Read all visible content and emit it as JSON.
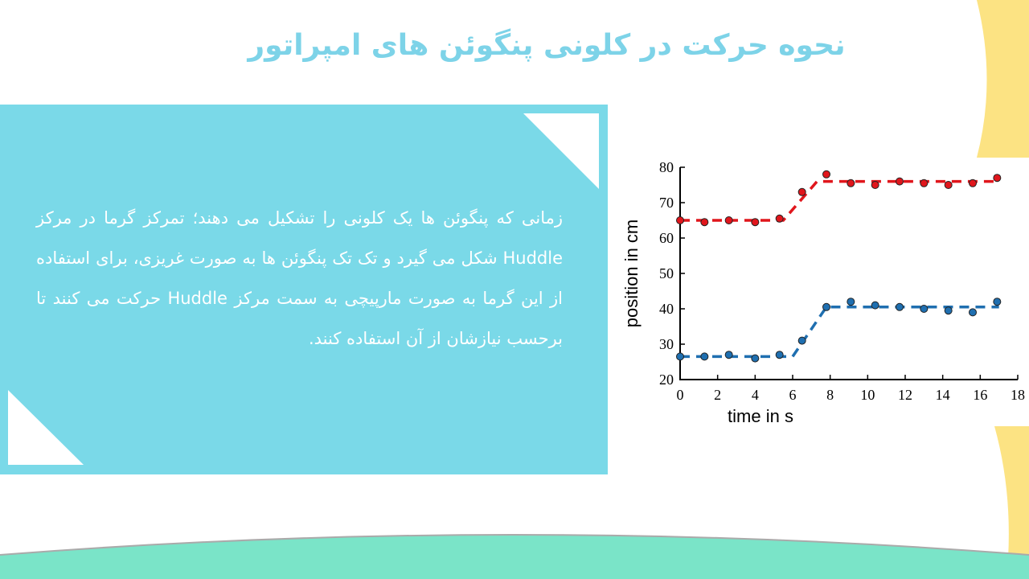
{
  "title": "نحوه حرکت در کلونی پنگوئن های امپراتور",
  "body": "زمانی که پنگوئن ها یک کلونی را تشکیل می دهند؛ تمرکز گرما در مرکز Huddle شکل می گیرد و تک تک پنگوئن ها به صورت غریزی، برای استفاده از این گرما به صورت مارپیچی به سمت مرکز Huddle حرکت می کنند تا برحسب نیازشان از آن استفاده کنند.",
  "chart_data": {
    "type": "scatter",
    "x_label": "time in s",
    "y_label": "position in cm",
    "xlim": [
      0,
      18
    ],
    "xticks": [
      0,
      2,
      4,
      6,
      8,
      10,
      12,
      14,
      16,
      18
    ],
    "ylim": [
      20,
      80
    ],
    "yticks": [
      20,
      30,
      40,
      50,
      60,
      70,
      80
    ],
    "series": [
      {
        "color": "#e0161c",
        "style": "dashed",
        "x": [
          0,
          5.5,
          7.3,
          17
        ],
        "values": [
          65,
          65,
          76,
          76
        ]
      },
      {
        "color": "#1f6fb0",
        "style": "dashed",
        "x": [
          0,
          6,
          7.8,
          17
        ],
        "values": [
          26.5,
          26.5,
          40.5,
          40.5
        ]
      },
      {
        "color": "#e0161c",
        "style": "markers",
        "x": [
          0,
          1.3,
          2.6,
          4,
          5.3,
          6.5,
          7.8,
          9.1,
          10.4,
          11.7,
          13,
          14.3,
          15.6,
          16.9
        ],
        "values": [
          65,
          64.5,
          65,
          64.5,
          65.5,
          73,
          78,
          75.5,
          75,
          76,
          75.5,
          75,
          75.5,
          77
        ]
      },
      {
        "color": "#1f6fb0",
        "style": "markers",
        "x": [
          0,
          1.3,
          2.6,
          4,
          5.3,
          6.5,
          7.8,
          9.1,
          10.4,
          11.7,
          13,
          14.3,
          15.6,
          16.9
        ],
        "values": [
          26.5,
          26.5,
          27,
          26,
          27,
          31,
          40.5,
          42,
          41,
          40.5,
          40,
          39.5,
          39,
          42
        ]
      }
    ]
  }
}
